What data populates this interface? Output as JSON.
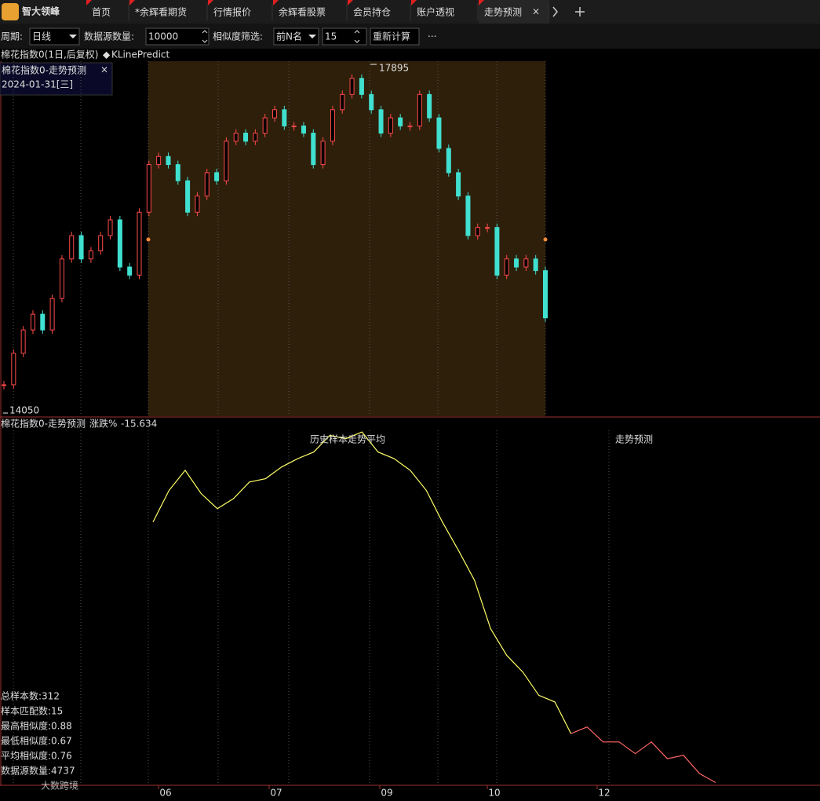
{
  "tabs": {
    "logo": "智大领峰",
    "items": [
      "首页",
      "*余辉看期货",
      "行情报价",
      "余辉看股票",
      "会员持仓",
      "账户透视",
      "走势预测"
    ]
  },
  "toolbar": {
    "period_label": "周期:",
    "period": "日线",
    "source_label": "数据源数量:",
    "source": "10000",
    "similarity_label": "相似度筛选:",
    "filter": "前N名",
    "count": "15",
    "button": "重新计算",
    "more": "···"
  },
  "upper_panel": {
    "header": "棉花指数0(1日,后复权)",
    "indicator": "KLinePredict",
    "tooltip_title": "棉花指数0-走势预测",
    "tooltip_date": "2024-01-31[三]",
    "ylim": [
      14050,
      17895
    ],
    "closes": [
      14330,
      14680,
      14940,
      15115,
      14940,
      15290,
      15730,
      15990,
      15730,
      15820,
      15990,
      16165,
      15640,
      15550,
      16250,
      16780,
      16870,
      16780,
      16600,
      16250,
      16430,
      16690,
      16600,
      17040,
      17130,
      17040,
      17130,
      17300,
      17390,
      17210,
      17210,
      17130,
      16780,
      17040,
      17390,
      17560,
      17740,
      17560,
      17390,
      17130,
      17300,
      17210,
      17210,
      17560,
      17300,
      16960,
      16690,
      16430,
      15990,
      16080,
      16080,
      15550,
      15730,
      15640,
      15730,
      15600,
      15075
    ]
  },
  "lower_panel": {
    "header": "棉花指数0-走势预测",
    "change_label": "涨跌%",
    "change": -15.634,
    "ylim": [
      -15.8,
      5.5
    ],
    "series": [
      {
        "name": "历史样本走势平均",
        "color": "#ffff66",
        "values": [
          0,
          1.9,
          3.1,
          1.7,
          0.8,
          1.4,
          2.4,
          2.6,
          3.3,
          3.8,
          4.2,
          5.2,
          5.0,
          5.4,
          4.2,
          3.8,
          3.1,
          1.9,
          0,
          -1.7,
          -3.5,
          -6.4,
          -8.0,
          -9.0,
          -10.4,
          -10.8,
          -12.7,
          null,
          null,
          null,
          null,
          null,
          null,
          null,
          null,
          null
        ]
      },
      {
        "name": "走势预测",
        "color": "#ff6666",
        "values": [
          null,
          null,
          null,
          null,
          null,
          null,
          null,
          null,
          null,
          null,
          null,
          null,
          null,
          null,
          null,
          null,
          null,
          null,
          null,
          null,
          null,
          null,
          null,
          null,
          null,
          null,
          -12.7,
          -12.3,
          -13.2,
          -13.2,
          -13.9,
          -13.2,
          -14.2,
          -14.0,
          -15.1,
          -15.634
        ]
      }
    ],
    "stats": [
      {
        "text": "总样本数:312",
        "color": "#ff8c3c"
      },
      {
        "text": "样本匹配数:15",
        "color": "#3cdc3c"
      },
      {
        "text": "最高相似度:0.88",
        "color": "#e8e8e8"
      },
      {
        "text": "最低相似度:0.67",
        "color": "#3cdc3c"
      },
      {
        "text": "平均相似度:0.76",
        "color": "#e8e8e8"
      },
      {
        "text": "数据源数量:4737",
        "color": "#ff4040"
      }
    ]
  },
  "x_axis": {
    "labels": [
      "06",
      "07",
      "09",
      "10",
      "12"
    ]
  },
  "watermark": "大数跨境"
}
